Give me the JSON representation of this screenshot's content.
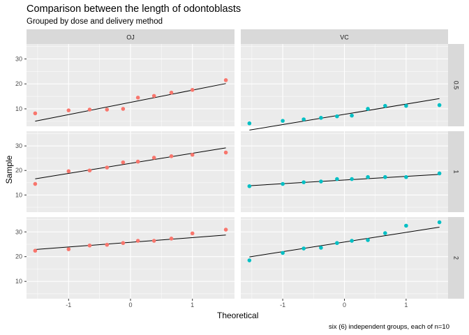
{
  "chart_data": {
    "type": "scatter",
    "title": "Comparison between the length of odontoblasts",
    "subtitle": "Grouped by dose and delivery method",
    "xlabel": "Theoretical",
    "ylabel": "Sample",
    "caption": "six (6) independent groups, each of n=10",
    "xlim": [
      -1.68,
      1.68
    ],
    "ylim": [
      3,
      36
    ],
    "x_ticks": [
      -1,
      0,
      1
    ],
    "y_ticks": [
      10,
      20,
      30
    ],
    "grid": true,
    "legend": "none",
    "facet_columns": [
      "OJ",
      "VC"
    ],
    "facet_rows": [
      "0.5",
      "1",
      "2"
    ],
    "colors": {
      "OJ": "#F8766D",
      "VC": "#00BFC4",
      "line": "#000000",
      "panel": "#EBEBEB",
      "strip": "#D9D9D9",
      "grid": "#FFFFFF"
    },
    "theoretical": [
      -1.54,
      -1.0,
      -0.66,
      -0.38,
      -0.12,
      0.12,
      0.38,
      0.66,
      1.0,
      1.54
    ],
    "panels": [
      {
        "supp": "OJ",
        "dose": "0.5",
        "sample": [
          8.2,
          9.4,
          9.7,
          9.7,
          10.0,
          14.5,
          15.2,
          16.5,
          17.6,
          21.5
        ],
        "line": {
          "intercept": 12.6,
          "slope": 4.9
        }
      },
      {
        "supp": "VC",
        "dose": "0.5",
        "sample": [
          4.2,
          5.2,
          5.8,
          6.4,
          7.0,
          7.3,
          10.0,
          11.2,
          11.2,
          11.5
        ],
        "line": {
          "intercept": 7.8,
          "slope": 4.1
        }
      },
      {
        "supp": "OJ",
        "dose": "1",
        "sample": [
          14.5,
          19.7,
          20.0,
          21.2,
          23.3,
          23.6,
          25.2,
          25.8,
          26.4,
          27.3
        ],
        "line": {
          "intercept": 22.9,
          "slope": 4.1
        }
      },
      {
        "supp": "VC",
        "dose": "1",
        "sample": [
          13.6,
          14.5,
          15.2,
          15.5,
          16.5,
          16.5,
          17.3,
          17.3,
          17.3,
          18.8
        ],
        "line": {
          "intercept": 16.1,
          "slope": 1.5
        }
      },
      {
        "supp": "OJ",
        "dose": "2",
        "sample": [
          22.4,
          23.0,
          24.5,
          24.8,
          25.5,
          26.4,
          26.4,
          27.3,
          29.4,
          30.9
        ],
        "line": {
          "intercept": 25.8,
          "slope": 1.9
        }
      },
      {
        "supp": "VC",
        "dose": "2",
        "sample": [
          18.5,
          21.5,
          23.3,
          23.6,
          25.5,
          26.4,
          26.7,
          29.5,
          32.5,
          33.9
        ],
        "line": {
          "intercept": 25.9,
          "slope": 3.9
        }
      }
    ]
  }
}
